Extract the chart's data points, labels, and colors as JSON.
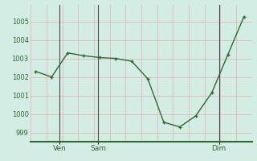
{
  "x_pts": [
    0,
    1,
    2,
    3,
    4,
    5,
    6,
    7,
    8,
    9,
    10,
    11,
    12,
    13
  ],
  "y_pts": [
    1002.3,
    1002.0,
    1003.3,
    1003.15,
    1003.05,
    1003.0,
    1002.85,
    1001.9,
    999.55,
    999.3,
    999.9,
    1001.15,
    1003.2,
    1005.25
  ],
  "ven_x": 1.5,
  "sam_x": 4.0,
  "dim_x": 11.5,
  "ven_vline": 1.5,
  "sam_vline": 3.9,
  "dim_vline": 11.45,
  "ylim_low": 998.5,
  "ylim_high": 1005.9,
  "xlim_low": -0.3,
  "xlim_high": 13.5,
  "yticks": [
    999,
    1000,
    1001,
    1002,
    1003,
    1004,
    1005
  ],
  "line_color": "#2d6a2d",
  "bg_color": "#d4ede4",
  "grid_pink": "#e0b8b8",
  "vline_color": "#4a4a4a",
  "tick_color": "#336633",
  "ven_label": "Ven",
  "sam_label": "Sam",
  "dim_label": "Dim"
}
